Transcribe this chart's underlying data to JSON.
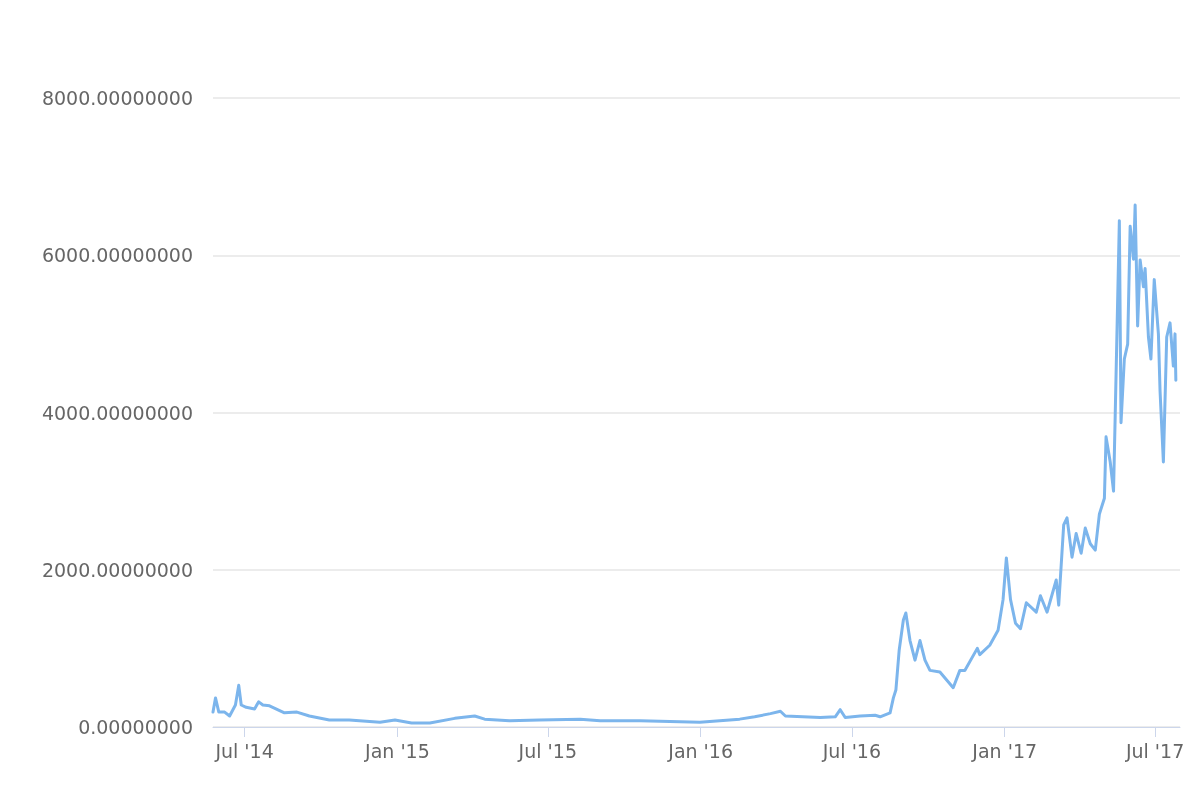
{
  "chart_data": {
    "type": "line",
    "color": "#7cb5ec",
    "grid": "y",
    "marker": "none",
    "line_style": "solid",
    "xlim": [
      "2014-05-24",
      "2017-07-31"
    ],
    "xticks": [
      {
        "value": "2014-07-01",
        "label": "Jul '14"
      },
      {
        "value": "2015-01-01",
        "label": "Jan '15"
      },
      {
        "value": "2015-07-01",
        "label": "Jul '15"
      },
      {
        "value": "2016-01-01",
        "label": "Jan '16"
      },
      {
        "value": "2016-07-01",
        "label": "Jul '16"
      },
      {
        "value": "2017-01-01",
        "label": "Jan '17"
      },
      {
        "value": "2017-07-01",
        "label": "Jul '17"
      }
    ],
    "ylim": [
      0,
      8000
    ],
    "yticks": [
      {
        "value": 0,
        "label": "0.00000000"
      },
      {
        "value": 2000,
        "label": "2000.00000000"
      },
      {
        "value": 4000,
        "label": "4000.00000000"
      },
      {
        "value": 6000,
        "label": "6000.00000000"
      },
      {
        "value": 8000,
        "label": "8000.00000000"
      }
    ],
    "x": [
      "2014-05-24",
      "2014-05-27",
      "2014-05-31",
      "2014-06-07",
      "2014-06-13",
      "2014-06-20",
      "2014-06-24",
      "2014-06-27",
      "2014-07-03",
      "2014-07-13",
      "2014-07-18",
      "2014-07-23",
      "2014-07-31",
      "2014-08-18",
      "2014-09-02",
      "2014-09-17",
      "2014-10-11",
      "2014-11-04",
      "2014-12-11",
      "2014-12-29",
      "2015-01-18",
      "2015-02-09",
      "2015-03-11",
      "2015-04-04",
      "2015-04-16",
      "2015-05-16",
      "2015-06-21",
      "2015-08-09",
      "2015-09-02",
      "2015-10-20",
      "2015-12-31",
      "2016-01-24",
      "2016-02-17",
      "2016-03-06",
      "2016-03-25",
      "2016-04-06",
      "2016-04-12",
      "2016-05-24",
      "2016-06-11",
      "2016-06-17",
      "2016-06-23",
      "2016-07-11",
      "2016-07-29",
      "2016-08-04",
      "2016-08-16",
      "2016-08-20",
      "2016-08-23",
      "2016-08-27",
      "2016-09-01",
      "2016-09-04",
      "2016-09-09",
      "2016-09-15",
      "2016-09-21",
      "2016-09-27",
      "2016-10-03",
      "2016-10-15",
      "2016-10-31",
      "2016-11-08",
      "2016-11-14",
      "2016-11-29",
      "2016-12-02",
      "2016-12-14",
      "2016-12-24",
      "2016-12-30",
      "2017-01-03",
      "2017-01-08",
      "2017-01-14",
      "2017-01-20",
      "2017-01-27",
      "2017-02-08",
      "2017-02-13",
      "2017-02-21",
      "2017-03-04",
      "2017-03-07",
      "2017-03-13",
      "2017-03-17",
      "2017-03-23",
      "2017-03-28",
      "2017-04-03",
      "2017-04-08",
      "2017-04-14",
      "2017-04-20",
      "2017-04-25",
      "2017-05-01",
      "2017-05-03",
      "2017-05-08",
      "2017-05-12",
      "2017-05-14",
      "2017-05-19",
      "2017-05-21",
      "2017-05-25",
      "2017-05-29",
      "2017-06-01",
      "2017-06-05",
      "2017-06-07",
      "2017-06-10",
      "2017-06-13",
      "2017-06-17",
      "2017-06-19",
      "2017-06-23",
      "2017-06-26",
      "2017-06-30",
      "2017-07-05",
      "2017-07-07",
      "2017-07-11",
      "2017-07-15",
      "2017-07-19",
      "2017-07-23",
      "2017-07-25",
      "2017-07-26"
    ],
    "values": [
      190,
      370,
      190,
      190,
      140,
      280,
      530,
      280,
      250,
      230,
      320,
      280,
      270,
      180,
      190,
      140,
      90,
      90,
      60,
      90,
      50,
      50,
      110,
      140,
      100,
      80,
      90,
      100,
      80,
      80,
      60,
      80,
      100,
      130,
      170,
      200,
      140,
      120,
      130,
      220,
      120,
      140,
      150,
      130,
      180,
      370,
      470,
      980,
      1360,
      1450,
      1100,
      850,
      1100,
      850,
      720,
      700,
      500,
      720,
      720,
      1000,
      920,
      1040,
      1230,
      1620,
      2150,
      1620,
      1320,
      1250,
      1580,
      1460,
      1670,
      1460,
      1870,
      1550,
      2570,
      2660,
      2160,
      2460,
      2210,
      2530,
      2330,
      2250,
      2710,
      2910,
      3690,
      3370,
      3000,
      3960,
      6440,
      3870,
      4680,
      4870,
      6370,
      5950,
      6640,
      5100,
      5940,
      5600,
      5830,
      4960,
      4680,
      5690,
      5000,
      4270,
      3370,
      4960,
      5140,
      4590,
      5000,
      4410
    ]
  }
}
